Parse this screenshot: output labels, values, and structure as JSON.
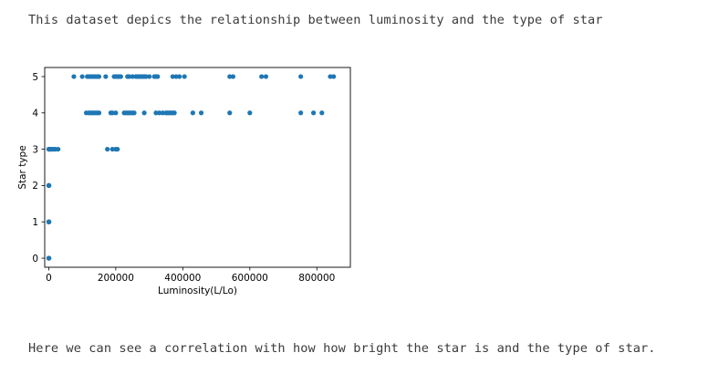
{
  "notes": {
    "intro": "This dataset depics the relationship between luminosity and the type of star",
    "outro": "Here we can see a correlation with how how bright the star is and the type of star."
  },
  "chart_data": {
    "type": "scatter",
    "title": "",
    "xlabel": "Luminosity(L/Lo)",
    "ylabel": "Star type",
    "xlim": [
      -12000,
      900000
    ],
    "ylim": [
      -0.25,
      5.25
    ],
    "xticks": [
      0,
      200000,
      400000,
      600000,
      800000
    ],
    "xtick_labels": [
      "0",
      "200000",
      "400000",
      "600000",
      "800000"
    ],
    "yticks": [
      0,
      1,
      2,
      3,
      4,
      5
    ],
    "ytick_labels": [
      "0",
      "1",
      "2",
      "3",
      "4",
      "5"
    ],
    "grid": false,
    "marker_color": "#1f77b4",
    "points": [
      [
        0,
        0
      ],
      [
        200,
        0
      ],
      [
        400,
        0
      ],
      [
        600,
        0
      ],
      [
        800,
        0
      ],
      [
        0,
        1
      ],
      [
        200,
        1
      ],
      [
        400,
        1
      ],
      [
        600,
        1
      ],
      [
        800,
        1
      ],
      [
        0,
        2
      ],
      [
        200,
        2
      ],
      [
        400,
        2
      ],
      [
        600,
        2
      ],
      [
        800,
        2
      ],
      [
        0,
        3
      ],
      [
        1000,
        3
      ],
      [
        3000,
        3
      ],
      [
        6000,
        3
      ],
      [
        10000,
        3
      ],
      [
        15000,
        3
      ],
      [
        20000,
        3
      ],
      [
        28000,
        3
      ],
      [
        175000,
        3
      ],
      [
        190000,
        3
      ],
      [
        200000,
        3
      ],
      [
        205000,
        3
      ],
      [
        112000,
        4
      ],
      [
        120000,
        4
      ],
      [
        125000,
        4
      ],
      [
        130000,
        4
      ],
      [
        135000,
        4
      ],
      [
        140000,
        4
      ],
      [
        145000,
        4
      ],
      [
        150000,
        4
      ],
      [
        185000,
        4
      ],
      [
        190000,
        4
      ],
      [
        200000,
        4
      ],
      [
        225000,
        4
      ],
      [
        230000,
        4
      ],
      [
        235000,
        4
      ],
      [
        240000,
        4
      ],
      [
        245000,
        4
      ],
      [
        250000,
        4
      ],
      [
        255000,
        4
      ],
      [
        285000,
        4
      ],
      [
        320000,
        4
      ],
      [
        330000,
        4
      ],
      [
        340000,
        4
      ],
      [
        350000,
        4
      ],
      [
        355000,
        4
      ],
      [
        360000,
        4
      ],
      [
        365000,
        4
      ],
      [
        370000,
        4
      ],
      [
        375000,
        4
      ],
      [
        430000,
        4
      ],
      [
        455000,
        4
      ],
      [
        540000,
        4
      ],
      [
        600000,
        4
      ],
      [
        752000,
        4
      ],
      [
        790000,
        4
      ],
      [
        815000,
        4
      ],
      [
        75000,
        5
      ],
      [
        100000,
        5
      ],
      [
        115000,
        5
      ],
      [
        120000,
        5
      ],
      [
        125000,
        5
      ],
      [
        130000,
        5
      ],
      [
        135000,
        5
      ],
      [
        140000,
        5
      ],
      [
        145000,
        5
      ],
      [
        150000,
        5
      ],
      [
        170000,
        5
      ],
      [
        195000,
        5
      ],
      [
        200000,
        5
      ],
      [
        205000,
        5
      ],
      [
        210000,
        5
      ],
      [
        215000,
        5
      ],
      [
        235000,
        5
      ],
      [
        240000,
        5
      ],
      [
        250000,
        5
      ],
      [
        260000,
        5
      ],
      [
        265000,
        5
      ],
      [
        270000,
        5
      ],
      [
        275000,
        5
      ],
      [
        280000,
        5
      ],
      [
        285000,
        5
      ],
      [
        290000,
        5
      ],
      [
        300000,
        5
      ],
      [
        315000,
        5
      ],
      [
        320000,
        5
      ],
      [
        325000,
        5
      ],
      [
        370000,
        5
      ],
      [
        380000,
        5
      ],
      [
        390000,
        5
      ],
      [
        405000,
        5
      ],
      [
        540000,
        5
      ],
      [
        550000,
        5
      ],
      [
        635000,
        5
      ],
      [
        648000,
        5
      ],
      [
        752000,
        5
      ],
      [
        840000,
        5
      ],
      [
        850000,
        5
      ]
    ]
  }
}
